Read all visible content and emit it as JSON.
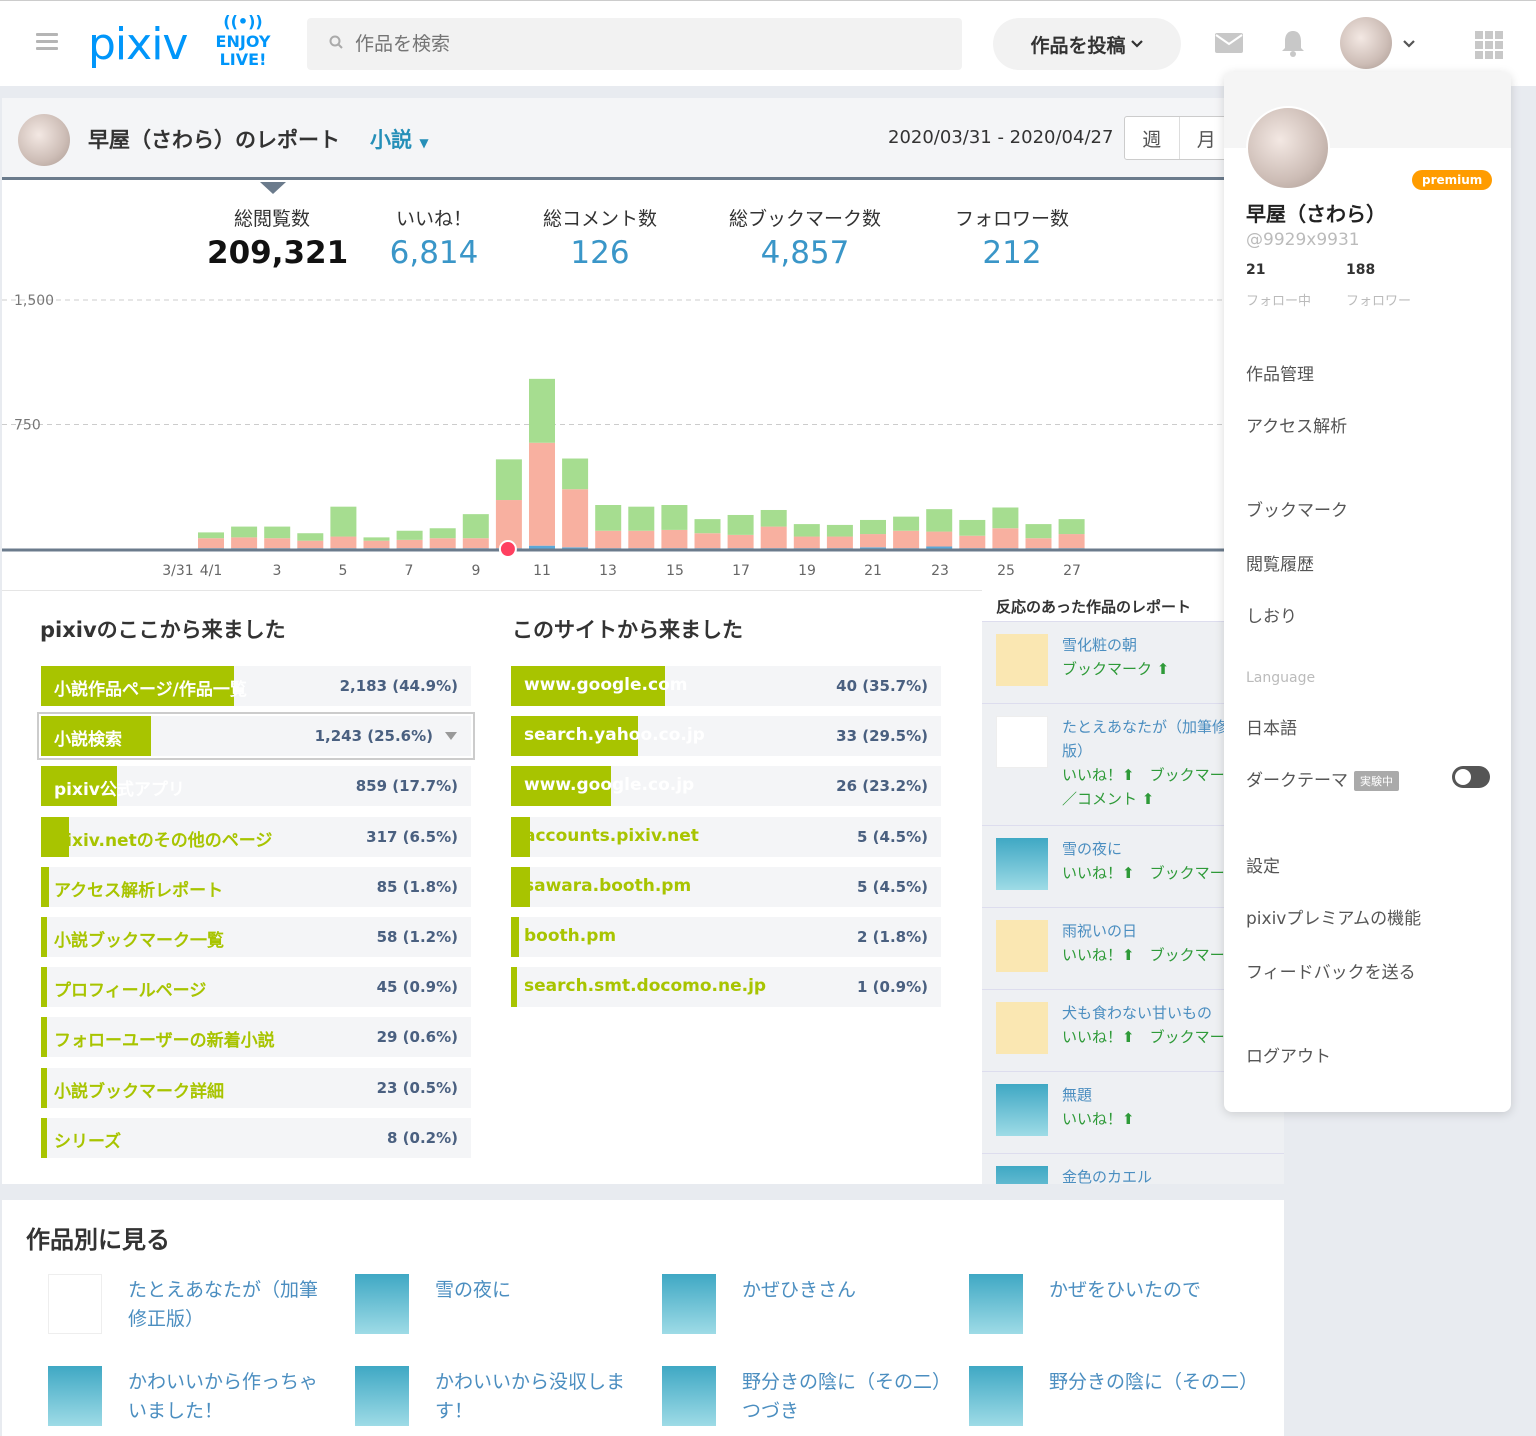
{
  "header": {
    "logo": "pixiv",
    "enjoy_live": [
      "ENJOY",
      "LIVE!"
    ],
    "search_placeholder": "作品を検索",
    "post_button": "作品を投稿"
  },
  "report": {
    "title": "早屋（さわら）のレポート",
    "category": "小説",
    "date_range": "2020/03/31 - 2020/04/27",
    "period_week": "週",
    "period_month": "月",
    "stats": [
      {
        "label": "総閲覧数",
        "value": "209,321"
      },
      {
        "label": "いいね！",
        "value": "6,814"
      },
      {
        "label": "総コメント数",
        "value": "126"
      },
      {
        "label": "総ブックマーク数",
        "value": "4,857"
      },
      {
        "label": "フォロワー数",
        "value": "212"
      }
    ]
  },
  "chart_data": {
    "type": "bar",
    "stacked": true,
    "ylim": [
      0,
      1500
    ],
    "yticks": [
      "1,500",
      "750"
    ],
    "xticks": [
      "3/31",
      "4/1",
      "3",
      "5",
      "7",
      "9",
      "11",
      "13",
      "15",
      "17",
      "19",
      "21",
      "23",
      "25",
      "27"
    ],
    "categories": [
      "4/1",
      "4/2",
      "4/3",
      "4/4",
      "4/5",
      "4/6",
      "4/7",
      "4/8",
      "4/9",
      "4/10",
      "4/11",
      "4/12",
      "4/13",
      "4/14",
      "4/15",
      "4/16",
      "4/17",
      "4/18",
      "4/19",
      "4/20",
      "4/21",
      "4/22",
      "4/23",
      "4/24",
      "4/25",
      "4/26",
      "4/27"
    ],
    "series": [
      {
        "color": "#5ba8d8",
        "values": [
          5,
          5,
          5,
          5,
          5,
          5,
          5,
          5,
          5,
          5,
          20,
          10,
          5,
          5,
          5,
          5,
          5,
          5,
          5,
          5,
          10,
          5,
          15,
          5,
          5,
          5,
          5
        ]
      },
      {
        "color": "#f8b0a0",
        "values": [
          60,
          65,
          60,
          45,
          70,
          45,
          50,
          60,
          60,
          290,
          620,
          350,
          105,
          105,
          110,
          90,
          80,
          130,
          70,
          70,
          80,
          105,
          90,
          75,
          120,
          60,
          85
        ]
      },
      {
        "color": "#a6dd90",
        "values": [
          35,
          65,
          70,
          45,
          180,
          20,
          55,
          60,
          145,
          245,
          385,
          185,
          155,
          145,
          150,
          85,
          120,
          100,
          75,
          70,
          85,
          85,
          135,
          95,
          125,
          85,
          90
        ]
      }
    ],
    "highlight_index": 9,
    "highlight_color": "#ff4060"
  },
  "pixiv_refs": {
    "title": "pixivのここから来ました",
    "items": [
      {
        "name": "小説作品ページ/作品一覧",
        "count": "2,183 (44.9%)",
        "pct": 44.9
      },
      {
        "name": "小説検索",
        "count": "1,243 (25.6%)",
        "pct": 25.6
      },
      {
        "name": "pixiv公式アプリ",
        "count": "859 (17.7%)",
        "pct": 17.7
      },
      {
        "name": "pixiv.netのその他のページ",
        "count": "317 (6.5%)",
        "pct": 6.5
      },
      {
        "name": "アクセス解析レポート",
        "count": "85 (1.8%)",
        "pct": 1.8
      },
      {
        "name": "小説ブックマーク一覧",
        "count": "58 (1.2%)",
        "pct": 1.2
      },
      {
        "name": "プロフィールページ",
        "count": "45 (0.9%)",
        "pct": 0.9
      },
      {
        "name": "フォローユーザーの新着小説",
        "count": "29 (0.6%)",
        "pct": 0.6
      },
      {
        "name": "小説ブックマーク詳細",
        "count": "23 (0.5%)",
        "pct": 0.5
      },
      {
        "name": "シリーズ",
        "count": "8 (0.2%)",
        "pct": 0.2
      }
    ]
  },
  "site_refs": {
    "title": "このサイトから来ました",
    "items": [
      {
        "name": "www.google.com",
        "count": "40 (35.7%)",
        "pct": 35.7
      },
      {
        "name": "search.yahoo.co.jp",
        "count": "33 (29.5%)",
        "pct": 29.5
      },
      {
        "name": "www.google.co.jp",
        "count": "26 (23.2%)",
        "pct": 23.2
      },
      {
        "name": "accounts.pixiv.net",
        "count": "5 (4.5%)",
        "pct": 4.5
      },
      {
        "name": "sawara.booth.pm",
        "count": "5 (4.5%)",
        "pct": 4.5
      },
      {
        "name": "booth.pm",
        "count": "2 (1.8%)",
        "pct": 1.8
      },
      {
        "name": "search.smt.docomo.ne.jp",
        "count": "1 (0.9%)",
        "pct": 0.9
      }
    ]
  },
  "reactions": {
    "title": "反応のあった作品のレポート",
    "items": [
      {
        "title": "雪化粧の朝",
        "meta": [
          "ブックマーク ⬆"
        ],
        "thumb": "yellow"
      },
      {
        "title": "たとえあなたが（加筆修正版）",
        "meta": [
          "いいね！⬆　ブックマーク",
          "／コメント ⬆"
        ],
        "thumb": "doc",
        "title2": "版）"
      },
      {
        "title": "雪の夜に",
        "meta": [
          "いいね！⬆　ブックマーク"
        ],
        "thumb": "blue"
      },
      {
        "title": "雨祝いの日",
        "meta": [
          "いいね！⬆　ブックマーク"
        ],
        "thumb": "yellow"
      },
      {
        "title": "犬も食わない甘いもの",
        "meta": [
          "いいね！⬆　ブックマーク"
        ],
        "thumb": "yellow"
      },
      {
        "title": "無題",
        "meta": [
          "いいね！⬆"
        ],
        "thumb": "blue"
      },
      {
        "title": "金色のカエル",
        "meta": [],
        "thumb": "blue"
      }
    ]
  },
  "works": {
    "title": "作品別に見る",
    "items": [
      {
        "title": "たとえあなたが（加筆修正版）",
        "thumb": "doc"
      },
      {
        "title": "雪の夜に",
        "thumb": "blue"
      },
      {
        "title": "かぜひきさん",
        "thumb": "blue"
      },
      {
        "title": "かぜをひいたので",
        "thumb": "blue"
      },
      {
        "title": "かわいいから作っちゃいました！",
        "thumb": "blue"
      },
      {
        "title": "かわいいから没収します！",
        "thumb": "blue"
      },
      {
        "title": "野分きの陰に（その二）つづき",
        "thumb": "blue"
      },
      {
        "title": "野分きの陰に（その二）",
        "thumb": "blue"
      }
    ]
  },
  "menu": {
    "badge": "premium",
    "username": "早屋（さわら）",
    "userid": "@9929x9931",
    "following_count": "21",
    "following_label": "フォロー中",
    "followers_count": "188",
    "followers_label": "フォロワー",
    "items": [
      "作品管理",
      "アクセス解析",
      "ブックマーク",
      "閲覧履歴",
      "しおり"
    ],
    "language_header": "Language",
    "language": "日本語",
    "dark_theme": "ダークテーマ",
    "experimental": "実験中",
    "items2": [
      "設定",
      "pixivプレミアムの機能",
      "フィードバックを送る"
    ],
    "logout": "ログアウト"
  },
  "colors": {
    "accent": "#0096fa",
    "bar_fill": "#a8c400",
    "link": "#4b8ec0",
    "up_arrow": "#2e9a38",
    "premium": "#ff9c00"
  }
}
